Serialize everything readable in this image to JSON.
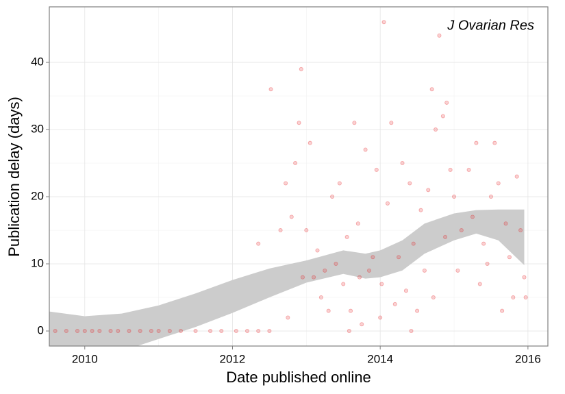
{
  "chart_data": {
    "type": "scatter",
    "annotation": "J Ovarian Res",
    "x_label": "Date published online",
    "y_label": "Publication delay (days)",
    "xlim": [
      2009.52,
      2016.27
    ],
    "ylim": [
      -2.24,
      48.27
    ],
    "xticks": [
      2010,
      2012,
      2014,
      2016
    ],
    "yticks": [
      0,
      10,
      20,
      30,
      40
    ],
    "grid": true,
    "series": [
      {
        "color": "#e41a1c",
        "x": [
          2009.6,
          2009.75,
          2009.9,
          2010.0,
          2010.1,
          2010.2,
          2010.35,
          2010.45,
          2010.6,
          2010.75,
          2010.9,
          2011.0,
          2011.15,
          2011.3,
          2011.5,
          2011.7,
          2011.85,
          2012.05,
          2012.2,
          2012.35,
          2012.5,
          2012.35,
          2012.52,
          2012.65,
          2012.72,
          2012.8,
          2012.85,
          2012.9,
          2012.93,
          2012.95,
          2012.75,
          2013.0,
          2013.05,
          2013.1,
          2013.15,
          2013.2,
          2013.3,
          2013.35,
          2013.4,
          2013.45,
          2013.5,
          2013.55,
          2013.6,
          2013.65,
          2013.7,
          2013.75,
          2013.8,
          2013.85,
          2013.9,
          2013.95,
          2014.0,
          2014.05,
          2014.1,
          2014.15,
          2014.2,
          2014.25,
          2014.3,
          2014.35,
          2014.4,
          2014.45,
          2014.5,
          2014.55,
          2014.6,
          2014.65,
          2014.7,
          2014.72,
          2014.75,
          2014.8,
          2014.85,
          2014.88,
          2014.9,
          2014.95,
          2015.0,
          2015.05,
          2015.1,
          2015.2,
          2015.25,
          2015.3,
          2015.35,
          2015.4,
          2015.45,
          2015.5,
          2015.55,
          2015.6,
          2015.65,
          2015.7,
          2015.75,
          2015.8,
          2015.85,
          2015.9,
          2015.95,
          2015.97,
          2013.25,
          2013.72,
          2014.02,
          2014.42,
          2013.58
        ],
        "values": [
          0,
          0,
          0,
          0,
          0,
          0,
          0,
          0,
          0,
          0,
          0,
          0,
          0,
          0,
          0,
          0,
          0,
          0,
          0,
          0,
          0,
          13,
          36,
          15,
          22,
          17,
          25,
          31,
          39,
          8,
          2,
          15,
          28,
          8,
          12,
          5,
          3,
          20,
          10,
          22,
          7,
          14,
          3,
          31,
          16,
          1,
          27,
          9,
          11,
          24,
          2,
          46,
          19,
          31,
          4,
          11,
          25,
          6,
          22,
          13,
          3,
          18,
          9,
          21,
          36,
          5,
          30,
          44,
          32,
          14,
          34,
          24,
          20,
          9,
          15,
          24,
          17,
          28,
          7,
          13,
          10,
          20,
          28,
          22,
          3,
          16,
          11,
          5,
          23,
          15,
          8,
          5,
          9,
          8,
          7,
          0,
          0
        ]
      }
    ],
    "band": {
      "color": "#cccccc",
      "x": [
        2009.52,
        2010,
        2010.5,
        2011,
        2011.5,
        2012,
        2012.5,
        2013,
        2013.5,
        2013.8,
        2014,
        2014.3,
        2014.6,
        2015,
        2015.3,
        2015.6,
        2015.95
      ],
      "upper": [
        2.9,
        2.2,
        2.6,
        3.8,
        5.6,
        7.6,
        9.3,
        10.5,
        12.0,
        11.5,
        12.0,
        13.5,
        16.0,
        17.5,
        18.0,
        18.1,
        18.1
      ],
      "lower": [
        -3.3,
        -4.0,
        -3.0,
        -1.2,
        0.6,
        2.7,
        5.0,
        7.2,
        8.5,
        7.8,
        8.0,
        9.0,
        11.5,
        13.5,
        14.5,
        13.5,
        9.8
      ]
    }
  }
}
